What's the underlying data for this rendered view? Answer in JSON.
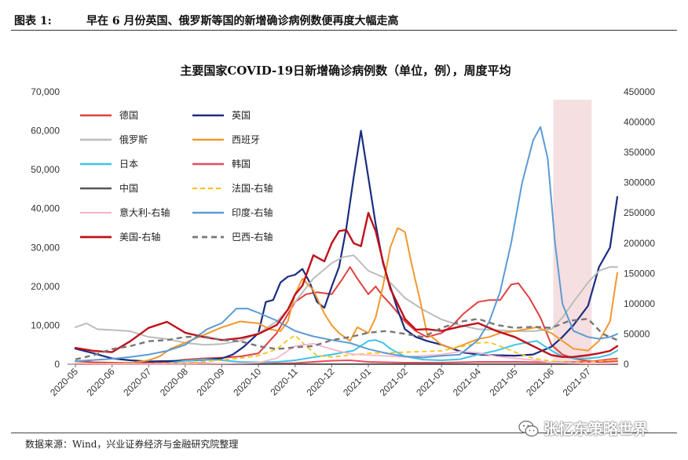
{
  "figure": {
    "label": "图表 1:",
    "title": "早在 6 月份英国、俄罗斯等国的新增确诊病例数便再度大幅走高",
    "source": "数据来源：Wind，兴业证券经济与金融研究院整理",
    "watermark": "张忆东策略世界"
  },
  "chart_data": {
    "type": "line",
    "title": "主要国家COVID-19日新增确诊病例数（单位，例），周度平均",
    "x_ticks": [
      "2020-05",
      "2020-06",
      "2020-07",
      "2020-08",
      "2020-09",
      "2020-10",
      "2020-11",
      "2020-12",
      "2021-01",
      "2021-02",
      "2021-03",
      "2021-04",
      "2021-05",
      "2021-06",
      "2021-07"
    ],
    "x_range": [
      0,
      14.8
    ],
    "y_left": {
      "ticks": [
        "0",
        "10,000",
        "20,000",
        "30,000",
        "40,000",
        "50,000",
        "60,000",
        "70,000"
      ],
      "range": [
        0,
        70000
      ]
    },
    "y_right": {
      "ticks": [
        "0",
        "50000",
        "100000",
        "150000",
        "200000",
        "250000",
        "300000",
        "350000",
        "400000",
        "450000"
      ],
      "range": [
        0,
        450000
      ]
    },
    "highlight_band": {
      "x_start": 13.05,
      "x_end": 14.1,
      "color": "#f6dfe0"
    },
    "series": [
      {
        "name": "德国",
        "axis": "left",
        "color": "#e04040",
        "dash": "solid",
        "width": 2,
        "x": [
          0,
          0.5,
          1,
          1.5,
          2,
          2.5,
          3,
          3.5,
          4,
          4.5,
          5,
          5.5,
          6,
          6.3,
          6.6,
          7,
          7.3,
          7.5,
          7.7,
          8,
          8.2,
          8.4,
          8.6,
          9,
          9.3,
          9.6,
          10,
          10.3,
          10.6,
          11,
          11.3,
          11.6,
          11.9,
          12.1,
          12.4,
          12.7,
          13,
          13.3,
          13.6,
          14,
          14.3,
          14.6,
          14.8
        ],
        "y": [
          800,
          500,
          400,
          350,
          450,
          600,
          1200,
          1500,
          1700,
          2000,
          2800,
          8000,
          16000,
          18000,
          18500,
          18000,
          22000,
          25000,
          22000,
          18000,
          20000,
          17500,
          15500,
          11000,
          8500,
          7000,
          8000,
          10000,
          13000,
          16000,
          16500,
          16500,
          20500,
          20800,
          17000,
          12000,
          5000,
          2500,
          1500,
          800,
          600,
          700,
          800
        ]
      },
      {
        "name": "英国",
        "axis": "left",
        "color": "#1a2d80",
        "dash": "solid",
        "width": 2.2,
        "x": [
          0,
          0.5,
          1,
          1.5,
          2,
          2.5,
          3,
          3.5,
          4,
          4.3,
          4.6,
          5,
          5.2,
          5.4,
          5.6,
          5.8,
          6,
          6.2,
          6.4,
          6.6,
          6.8,
          7,
          7.2,
          7.4,
          7.6,
          7.8,
          8,
          8.2,
          8.4,
          8.6,
          8.8,
          9,
          9.3,
          9.6,
          10,
          10.3,
          10.6,
          11,
          11.5,
          12,
          12.5,
          13,
          13.3,
          13.6,
          14,
          14.3,
          14.6,
          14.8
        ],
        "y": [
          4000,
          2800,
          1500,
          1000,
          700,
          800,
          900,
          1100,
          1500,
          2500,
          4500,
          8000,
          16000,
          16500,
          21000,
          22500,
          23000,
          24500,
          21000,
          16000,
          14500,
          20000,
          25000,
          35000,
          48000,
          60000,
          48000,
          36000,
          26000,
          20000,
          14000,
          9000,
          7000,
          6000,
          5000,
          4000,
          3000,
          2500,
          2300,
          2200,
          2500,
          4500,
          7000,
          10000,
          15000,
          25000,
          30000,
          43000
        ]
      },
      {
        "name": "俄罗斯",
        "axis": "left",
        "color": "#bcbcbc",
        "dash": "solid",
        "width": 2,
        "x": [
          0,
          0.3,
          0.6,
          1,
          1.5,
          2,
          2.5,
          3,
          3.5,
          4,
          4.5,
          5,
          5.5,
          6,
          6.5,
          7,
          7.3,
          7.6,
          8,
          8.5,
          9,
          9.5,
          10,
          10.5,
          11,
          11.5,
          12,
          12.5,
          13,
          13.3,
          13.6,
          14,
          14.3,
          14.6,
          14.8
        ],
        "y": [
          9500,
          10500,
          9000,
          8800,
          8500,
          7000,
          6500,
          5500,
          5000,
          5200,
          6000,
          8000,
          11000,
          16000,
          22000,
          26000,
          27500,
          28000,
          24000,
          22000,
          17000,
          14000,
          11500,
          10000,
          9000,
          8800,
          8500,
          8500,
          9000,
          12000,
          16000,
          21000,
          24000,
          25000,
          25000
        ]
      },
      {
        "name": "西班牙",
        "axis": "left",
        "color": "#f2982e",
        "dash": "solid",
        "width": 2,
        "x": [
          0,
          0.5,
          1,
          1.5,
          2,
          2.3,
          2.6,
          3,
          3.5,
          4,
          4.5,
          5,
          5.3,
          5.6,
          5.8,
          6,
          6.2,
          6.5,
          6.8,
          7,
          7.2,
          7.5,
          7.7,
          8,
          8.2,
          8.4,
          8.6,
          8.8,
          9,
          9.2,
          9.4,
          9.6,
          10,
          10.3,
          10.6,
          11,
          11.3,
          11.6,
          12,
          12.3,
          12.6,
          13,
          13.3,
          13.6,
          14,
          14.3,
          14.6,
          14.8
        ],
        "y": [
          200,
          150,
          200,
          300,
          1000,
          2000,
          4000,
          5500,
          7500,
          9500,
          11000,
          10500,
          9000,
          8500,
          11000,
          18000,
          22000,
          19000,
          13000,
          10000,
          8000,
          6000,
          9500,
          8000,
          12000,
          20000,
          30000,
          35000,
          34000,
          25000,
          17000,
          8000,
          5000,
          4000,
          5000,
          6500,
          7000,
          8000,
          8500,
          9000,
          9500,
          8000,
          6000,
          4000,
          3500,
          6000,
          11000,
          23500
        ]
      },
      {
        "name": "日本",
        "axis": "left",
        "color": "#3fc4e6",
        "dash": "solid",
        "width": 2,
        "x": [
          0,
          1,
          2,
          2.5,
          3,
          3.5,
          4,
          4.5,
          5,
          5.5,
          6,
          6.5,
          7,
          7.3,
          7.6,
          8,
          8.2,
          8.4,
          8.6,
          9,
          9.5,
          10,
          10.5,
          11,
          11.5,
          12,
          12.3,
          12.6,
          13,
          13.3,
          13.6,
          14,
          14.3,
          14.6,
          14.8
        ],
        "y": [
          30,
          40,
          60,
          200,
          900,
          1200,
          1000,
          600,
          500,
          600,
          1000,
          1800,
          2500,
          3000,
          3500,
          6000,
          6200,
          5500,
          4000,
          2000,
          1200,
          1000,
          1300,
          2500,
          3500,
          5000,
          5500,
          6000,
          3500,
          2000,
          1500,
          1500,
          1800,
          2500,
          3500
        ]
      },
      {
        "name": "韩国",
        "axis": "left",
        "color": "#e84a5f",
        "dash": "solid",
        "width": 2,
        "x": [
          0,
          1,
          2,
          3,
          3.3,
          3.6,
          4,
          5,
          6,
          7,
          7.5,
          8,
          9,
          10,
          11,
          12,
          13,
          14,
          14.5,
          14.8
        ],
        "y": [
          30,
          40,
          50,
          250,
          300,
          200,
          100,
          100,
          300,
          900,
          1000,
          600,
          400,
          400,
          600,
          600,
          500,
          600,
          1200,
          1500
        ]
      },
      {
        "name": "中国",
        "axis": "left",
        "color": "#555555",
        "dash": "solid",
        "width": 2,
        "x": [
          0,
          3,
          6,
          9,
          12,
          14.8
        ],
        "y": [
          20,
          20,
          20,
          30,
          20,
          30
        ]
      },
      {
        "name": "法国-右轴",
        "axis": "right",
        "color": "#f5c518",
        "dash": "6,4",
        "width": 1.8,
        "x": [
          0,
          1,
          2,
          3,
          3.5,
          4,
          4.5,
          5,
          5.5,
          5.8,
          6,
          6.3,
          6.6,
          7,
          7.5,
          8,
          9,
          10,
          11,
          11.3,
          11.6,
          12,
          12.5,
          13,
          13.5,
          14,
          14.5,
          14.8
        ],
        "y": [
          500,
          300,
          600,
          2000,
          4000,
          7000,
          10000,
          14000,
          25000,
          40000,
          48000,
          30000,
          14000,
          12000,
          15000,
          18000,
          20000,
          22000,
          35000,
          36000,
          30000,
          20000,
          10000,
          5000,
          3000,
          3500,
          6000,
          7000
        ]
      },
      {
        "name": "意大利-右轴",
        "axis": "right",
        "color": "#f7b6cc",
        "dash": "solid",
        "width": 1.8,
        "x": [
          0,
          1,
          2,
          3,
          4,
          4.5,
          5,
          5.5,
          6,
          6.5,
          7,
          7.5,
          8,
          9,
          10,
          10.5,
          11,
          11.5,
          12,
          12.5,
          13,
          14,
          14.8
        ],
        "y": [
          600,
          300,
          200,
          400,
          1000,
          1500,
          2500,
          10000,
          30000,
          34000,
          25000,
          17000,
          15000,
          12000,
          16000,
          21000,
          19000,
          13000,
          10000,
          7000,
          3000,
          1000,
          1500
        ]
      },
      {
        "name": "印度-右轴",
        "axis": "right",
        "color": "#5b9bd5",
        "dash": "solid",
        "width": 2,
        "x": [
          0,
          0.5,
          1,
          1.5,
          2,
          2.5,
          3,
          3.3,
          3.6,
          4,
          4.2,
          4.4,
          4.7,
          5,
          5.5,
          6,
          6.5,
          7,
          7.5,
          8,
          8.5,
          9,
          9.5,
          10,
          10.5,
          11,
          11.3,
          11.6,
          11.9,
          12.2,
          12.5,
          12.7,
          12.9,
          13.1,
          13.3,
          13.6,
          14,
          14.3,
          14.6,
          14.8
        ],
        "y": [
          5000,
          7000,
          9000,
          12000,
          16000,
          22000,
          32000,
          45000,
          58000,
          68000,
          80000,
          92000,
          92000,
          85000,
          72000,
          55000,
          46000,
          40000,
          35000,
          25000,
          18000,
          13000,
          11000,
          14000,
          16000,
          40000,
          70000,
          120000,
          200000,
          300000,
          370000,
          392000,
          340000,
          200000,
          100000,
          55000,
          45000,
          42000,
          45000,
          50000
        ]
      },
      {
        "name": "美国-右轴",
        "axis": "right",
        "color": "#c0101a",
        "dash": "solid",
        "width": 2.4,
        "x": [
          0,
          0.5,
          1,
          1.5,
          2,
          2.5,
          3,
          3.5,
          4,
          4.5,
          5,
          5.5,
          5.8,
          6,
          6.2,
          6.5,
          6.8,
          7,
          7.2,
          7.4,
          7.6,
          7.8,
          8,
          8.2,
          8.4,
          8.6,
          9,
          9.3,
          9.6,
          10,
          10.5,
          11,
          11.5,
          12,
          12.5,
          13,
          13.3,
          13.6,
          14,
          14.3,
          14.6,
          14.8
        ],
        "y": [
          27000,
          22000,
          20000,
          38000,
          60000,
          70000,
          52000,
          45000,
          40000,
          43000,
          50000,
          65000,
          90000,
          115000,
          130000,
          180000,
          170000,
          200000,
          220000,
          222000,
          200000,
          195000,
          250000,
          220000,
          170000,
          125000,
          75000,
          57000,
          58000,
          55000,
          62000,
          68000,
          55000,
          45000,
          30000,
          15000,
          12000,
          12000,
          15000,
          18000,
          22000,
          30000
        ]
      },
      {
        "name": "巴西-右轴",
        "axis": "right",
        "color": "#777777",
        "dash": "7,5",
        "width": 2.4,
        "x": [
          0,
          0.5,
          1,
          1.5,
          2,
          2.5,
          3,
          3.5,
          4,
          4.5,
          5,
          5.5,
          6,
          6.5,
          7,
          7.5,
          8,
          8.5,
          9,
          9.5,
          10,
          10.5,
          11,
          11.5,
          12,
          12.5,
          13,
          13.5,
          14,
          14.4,
          14.8
        ],
        "y": [
          8000,
          15000,
          25000,
          30000,
          38000,
          40000,
          45000,
          46000,
          40000,
          38000,
          30000,
          25000,
          28000,
          30000,
          40000,
          45000,
          52000,
          55000,
          50000,
          45000,
          60000,
          70000,
          75000,
          65000,
          60000,
          62000,
          60000,
          72000,
          75000,
          50000,
          40000
        ]
      }
    ]
  }
}
